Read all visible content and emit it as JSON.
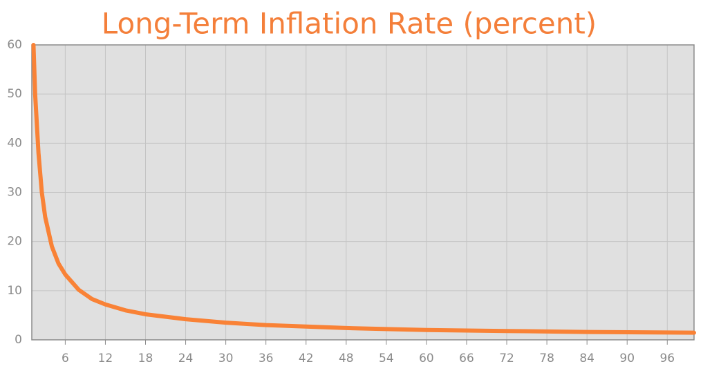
{
  "chart_data": {
    "type": "line",
    "title": "Long-Term Inflation Rate (percent)",
    "x": [
      1.25,
      1.5,
      2,
      2.5,
      3,
      4,
      5,
      6,
      8,
      10,
      12,
      15,
      18,
      24,
      30,
      36,
      42,
      48,
      54,
      60,
      72,
      84,
      96,
      100
    ],
    "series": [
      {
        "color": "#f98236",
        "values": [
          60,
          50,
          38,
          30,
          25,
          19,
          15.5,
          13.3,
          10.2,
          8.3,
          7.2,
          6.0,
          5.2,
          4.2,
          3.5,
          3.0,
          2.7,
          2.4,
          2.2,
          2.0,
          1.8,
          1.6,
          1.5,
          1.45
        ]
      }
    ],
    "xlim": [
      1,
      100
    ],
    "xticks": [
      6,
      12,
      18,
      24,
      30,
      36,
      42,
      48,
      54,
      60,
      66,
      72,
      78,
      84,
      90,
      96
    ],
    "ylim": [
      0,
      60
    ],
    "yticks": [
      0,
      10,
      20,
      30,
      40,
      50,
      60
    ],
    "grid": true
  }
}
